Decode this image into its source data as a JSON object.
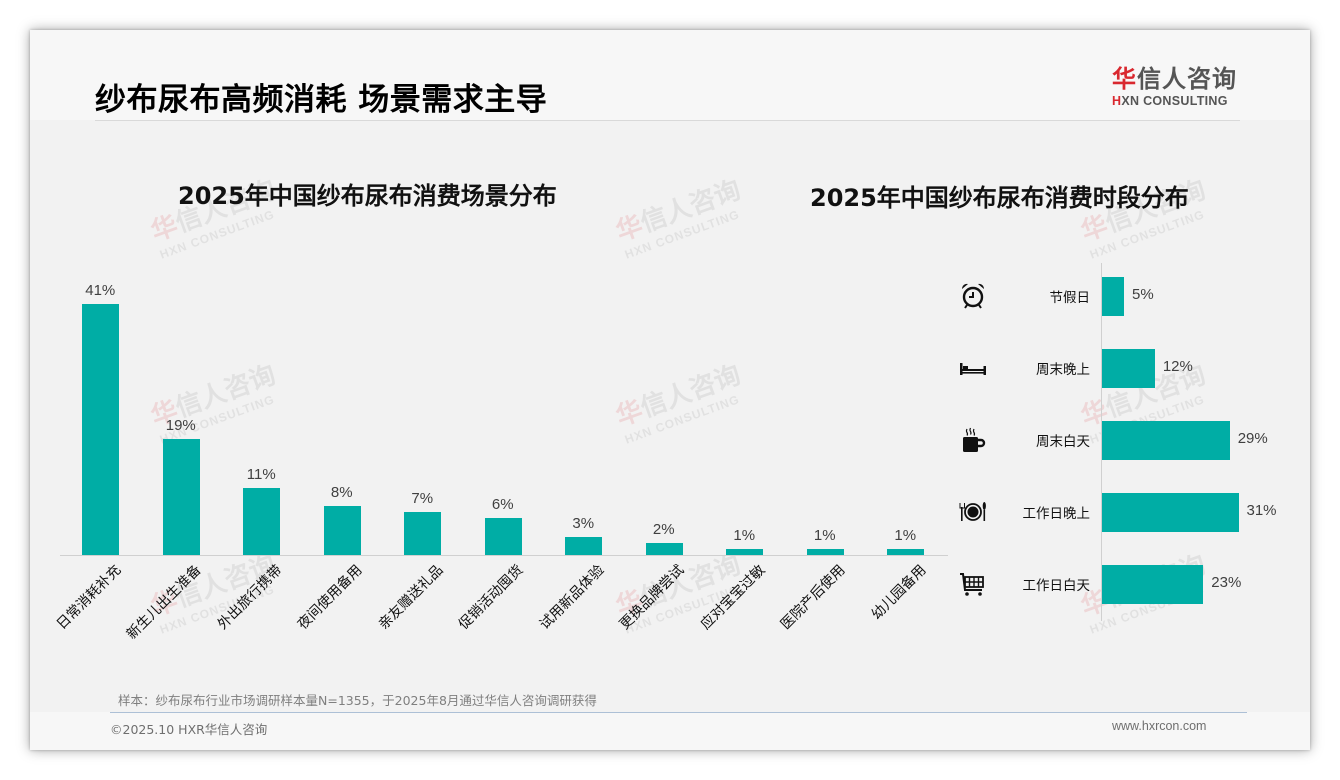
{
  "header": {
    "title": "纱布尿布高频消耗 场景需求主导",
    "logo": {
      "cn_red": "华",
      "cn_rest": "信人咨询",
      "en_red": "H",
      "en_rest": "XN CONSULTING"
    }
  },
  "watermark": {
    "cn_red": "华",
    "cn_rest": "信人咨询",
    "en": "HXN CONSULTING"
  },
  "colors": {
    "bar": "#00ada5",
    "logo_red": "#d9282f",
    "title": "#000000",
    "value_label": "#404040"
  },
  "chart_data": [
    {
      "type": "bar",
      "title": "2025年中国纱布尿布消费场景分布",
      "categories": [
        "日常消耗补充",
        "新生儿出生准备",
        "外出旅行携带",
        "夜间使用备用",
        "亲友赠送礼品",
        "促销活动囤货",
        "试用新品体验",
        "更换品牌尝试",
        "应对宝宝过敏",
        "医院产后使用",
        "幼儿园备用"
      ],
      "values": [
        41,
        19,
        11,
        8,
        7,
        6,
        3,
        2,
        1,
        1,
        1
      ],
      "value_labels": [
        "41%",
        "19%",
        "11%",
        "8%",
        "7%",
        "6%",
        "3%",
        "2%",
        "1%",
        "1%",
        "1%"
      ],
      "xlabel": "",
      "ylabel": "",
      "unit": "%",
      "grid": false,
      "legend": "none",
      "ylim": [
        0,
        41
      ]
    },
    {
      "type": "bar",
      "orientation": "horizontal",
      "title": "2025年中国纱布尿布消费时段分布",
      "categories": [
        "节假日",
        "周末晚上",
        "周末白天",
        "工作日晚上",
        "工作日白天"
      ],
      "icons": [
        "alarm-clock-icon",
        "bed-icon",
        "coffee-mug-icon",
        "plate-fork-knife-icon",
        "shopping-cart-icon"
      ],
      "values": [
        5,
        12,
        29,
        31,
        23
      ],
      "value_labels": [
        "5%",
        "12%",
        "29%",
        "31%",
        "23%"
      ],
      "xlabel": "",
      "ylabel": "",
      "unit": "%",
      "grid": false,
      "legend": "none"
    }
  ],
  "footer": {
    "note": "样本：纱布尿布行业市场调研样本量N=1355，于2025年8月通过华信人咨询调研获得",
    "copyright": "©2025.10 HXR华信人咨询",
    "website": "www.hxrcon.com"
  }
}
